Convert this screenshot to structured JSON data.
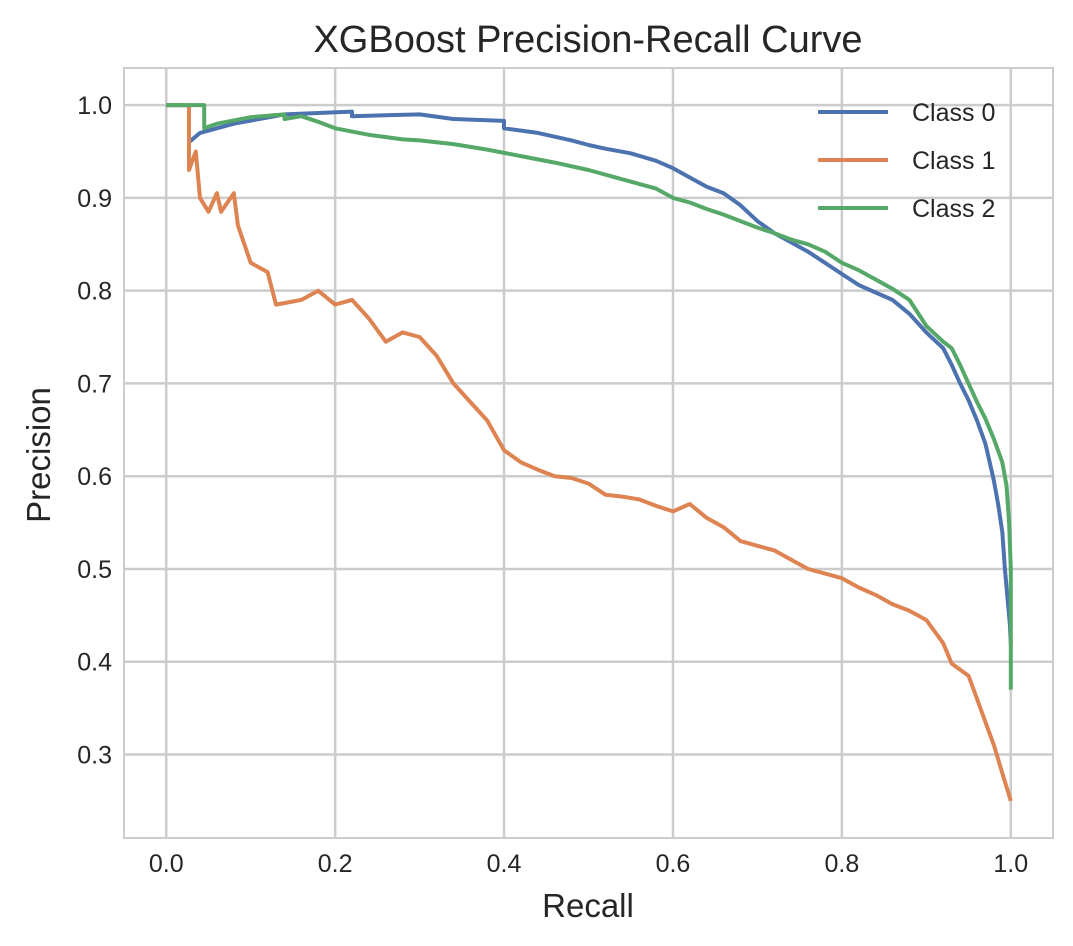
{
  "chart_data": {
    "type": "line",
    "title": "XGBoost Precision-Recall Curve",
    "xlabel": "Recall",
    "ylabel": "Precision",
    "xlim": [
      -0.05,
      1.05
    ],
    "ylim": [
      0.21,
      1.04
    ],
    "xticks": [
      0.0,
      0.2,
      0.4,
      0.6,
      0.8,
      1.0
    ],
    "xtick_labels": [
      "0.0",
      "0.2",
      "0.4",
      "0.6",
      "0.8",
      "1.0"
    ],
    "yticks": [
      0.3,
      0.4,
      0.5,
      0.6,
      0.7,
      0.8,
      0.9,
      1.0
    ],
    "ytick_labels": [
      "0.3",
      "0.4",
      "0.5",
      "0.6",
      "0.7",
      "0.8",
      "0.9",
      "1.0"
    ],
    "grid": true,
    "legend_position": "top-right",
    "series": [
      {
        "name": "Class 0",
        "color": "#4c72b0",
        "points": [
          [
            0.0,
            1.0
          ],
          [
            0.027,
            1.0
          ],
          [
            0.027,
            0.96
          ],
          [
            0.04,
            0.97
          ],
          [
            0.08,
            0.98
          ],
          [
            0.14,
            0.99
          ],
          [
            0.22,
            0.993
          ],
          [
            0.22,
            0.988
          ],
          [
            0.3,
            0.99
          ],
          [
            0.34,
            0.985
          ],
          [
            0.4,
            0.983
          ],
          [
            0.4,
            0.975
          ],
          [
            0.44,
            0.97
          ],
          [
            0.48,
            0.962
          ],
          [
            0.5,
            0.957
          ],
          [
            0.52,
            0.953
          ],
          [
            0.55,
            0.948
          ],
          [
            0.58,
            0.94
          ],
          [
            0.6,
            0.932
          ],
          [
            0.62,
            0.922
          ],
          [
            0.64,
            0.912
          ],
          [
            0.66,
            0.905
          ],
          [
            0.68,
            0.892
          ],
          [
            0.7,
            0.875
          ],
          [
            0.72,
            0.862
          ],
          [
            0.74,
            0.852
          ],
          [
            0.76,
            0.842
          ],
          [
            0.78,
            0.83
          ],
          [
            0.8,
            0.818
          ],
          [
            0.82,
            0.806
          ],
          [
            0.84,
            0.798
          ],
          [
            0.86,
            0.79
          ],
          [
            0.88,
            0.775
          ],
          [
            0.9,
            0.755
          ],
          [
            0.92,
            0.738
          ],
          [
            0.93,
            0.72
          ],
          [
            0.94,
            0.7
          ],
          [
            0.95,
            0.682
          ],
          [
            0.96,
            0.66
          ],
          [
            0.97,
            0.635
          ],
          [
            0.975,
            0.615
          ],
          [
            0.98,
            0.595
          ],
          [
            0.985,
            0.57
          ],
          [
            0.99,
            0.54
          ],
          [
            0.993,
            0.5
          ],
          [
            0.996,
            0.47
          ],
          [
            0.999,
            0.44
          ],
          [
            1.0,
            0.42
          ]
        ]
      },
      {
        "name": "Class 1",
        "color": "#dd8452",
        "points": [
          [
            0.0,
            1.0
          ],
          [
            0.027,
            1.0
          ],
          [
            0.027,
            0.93
          ],
          [
            0.035,
            0.95
          ],
          [
            0.04,
            0.9
          ],
          [
            0.05,
            0.885
          ],
          [
            0.06,
            0.905
          ],
          [
            0.065,
            0.885
          ],
          [
            0.08,
            0.905
          ],
          [
            0.085,
            0.87
          ],
          [
            0.1,
            0.83
          ],
          [
            0.12,
            0.82
          ],
          [
            0.13,
            0.785
          ],
          [
            0.16,
            0.79
          ],
          [
            0.18,
            0.8
          ],
          [
            0.2,
            0.785
          ],
          [
            0.22,
            0.79
          ],
          [
            0.24,
            0.77
          ],
          [
            0.26,
            0.745
          ],
          [
            0.28,
            0.755
          ],
          [
            0.3,
            0.75
          ],
          [
            0.32,
            0.73
          ],
          [
            0.34,
            0.7
          ],
          [
            0.36,
            0.68
          ],
          [
            0.38,
            0.66
          ],
          [
            0.4,
            0.628
          ],
          [
            0.42,
            0.615
          ],
          [
            0.44,
            0.607
          ],
          [
            0.46,
            0.6
          ],
          [
            0.48,
            0.598
          ],
          [
            0.5,
            0.592
          ],
          [
            0.52,
            0.58
          ],
          [
            0.54,
            0.578
          ],
          [
            0.56,
            0.575
          ],
          [
            0.58,
            0.568
          ],
          [
            0.6,
            0.562
          ],
          [
            0.62,
            0.57
          ],
          [
            0.64,
            0.555
          ],
          [
            0.66,
            0.545
          ],
          [
            0.68,
            0.53
          ],
          [
            0.7,
            0.525
          ],
          [
            0.72,
            0.52
          ],
          [
            0.74,
            0.51
          ],
          [
            0.76,
            0.5
          ],
          [
            0.78,
            0.495
          ],
          [
            0.8,
            0.49
          ],
          [
            0.82,
            0.48
          ],
          [
            0.84,
            0.472
          ],
          [
            0.86,
            0.462
          ],
          [
            0.88,
            0.455
          ],
          [
            0.9,
            0.445
          ],
          [
            0.92,
            0.42
          ],
          [
            0.93,
            0.398
          ],
          [
            0.95,
            0.385
          ],
          [
            0.96,
            0.36
          ],
          [
            0.97,
            0.335
          ],
          [
            0.98,
            0.31
          ],
          [
            0.99,
            0.28
          ],
          [
            1.0,
            0.25
          ]
        ]
      },
      {
        "name": "Class 2",
        "color": "#55a868",
        "points": [
          [
            0.0,
            1.0
          ],
          [
            0.045,
            1.0
          ],
          [
            0.045,
            0.975
          ],
          [
            0.06,
            0.98
          ],
          [
            0.1,
            0.987
          ],
          [
            0.14,
            0.99
          ],
          [
            0.14,
            0.985
          ],
          [
            0.16,
            0.988
          ],
          [
            0.18,
            0.982
          ],
          [
            0.2,
            0.975
          ],
          [
            0.24,
            0.968
          ],
          [
            0.28,
            0.963
          ],
          [
            0.3,
            0.962
          ],
          [
            0.34,
            0.958
          ],
          [
            0.38,
            0.952
          ],
          [
            0.42,
            0.945
          ],
          [
            0.46,
            0.938
          ],
          [
            0.5,
            0.93
          ],
          [
            0.54,
            0.92
          ],
          [
            0.58,
            0.91
          ],
          [
            0.6,
            0.9
          ],
          [
            0.62,
            0.895
          ],
          [
            0.64,
            0.888
          ],
          [
            0.66,
            0.882
          ],
          [
            0.68,
            0.875
          ],
          [
            0.7,
            0.868
          ],
          [
            0.72,
            0.862
          ],
          [
            0.74,
            0.855
          ],
          [
            0.76,
            0.85
          ],
          [
            0.78,
            0.842
          ],
          [
            0.8,
            0.83
          ],
          [
            0.82,
            0.822
          ],
          [
            0.84,
            0.812
          ],
          [
            0.86,
            0.802
          ],
          [
            0.88,
            0.79
          ],
          [
            0.9,
            0.762
          ],
          [
            0.92,
            0.745
          ],
          [
            0.93,
            0.738
          ],
          [
            0.94,
            0.72
          ],
          [
            0.95,
            0.7
          ],
          [
            0.96,
            0.68
          ],
          [
            0.97,
            0.662
          ],
          [
            0.98,
            0.64
          ],
          [
            0.99,
            0.615
          ],
          [
            0.995,
            0.59
          ],
          [
            0.998,
            0.55
          ],
          [
            1.0,
            0.5
          ],
          [
            1.0,
            0.37
          ]
        ]
      }
    ]
  }
}
